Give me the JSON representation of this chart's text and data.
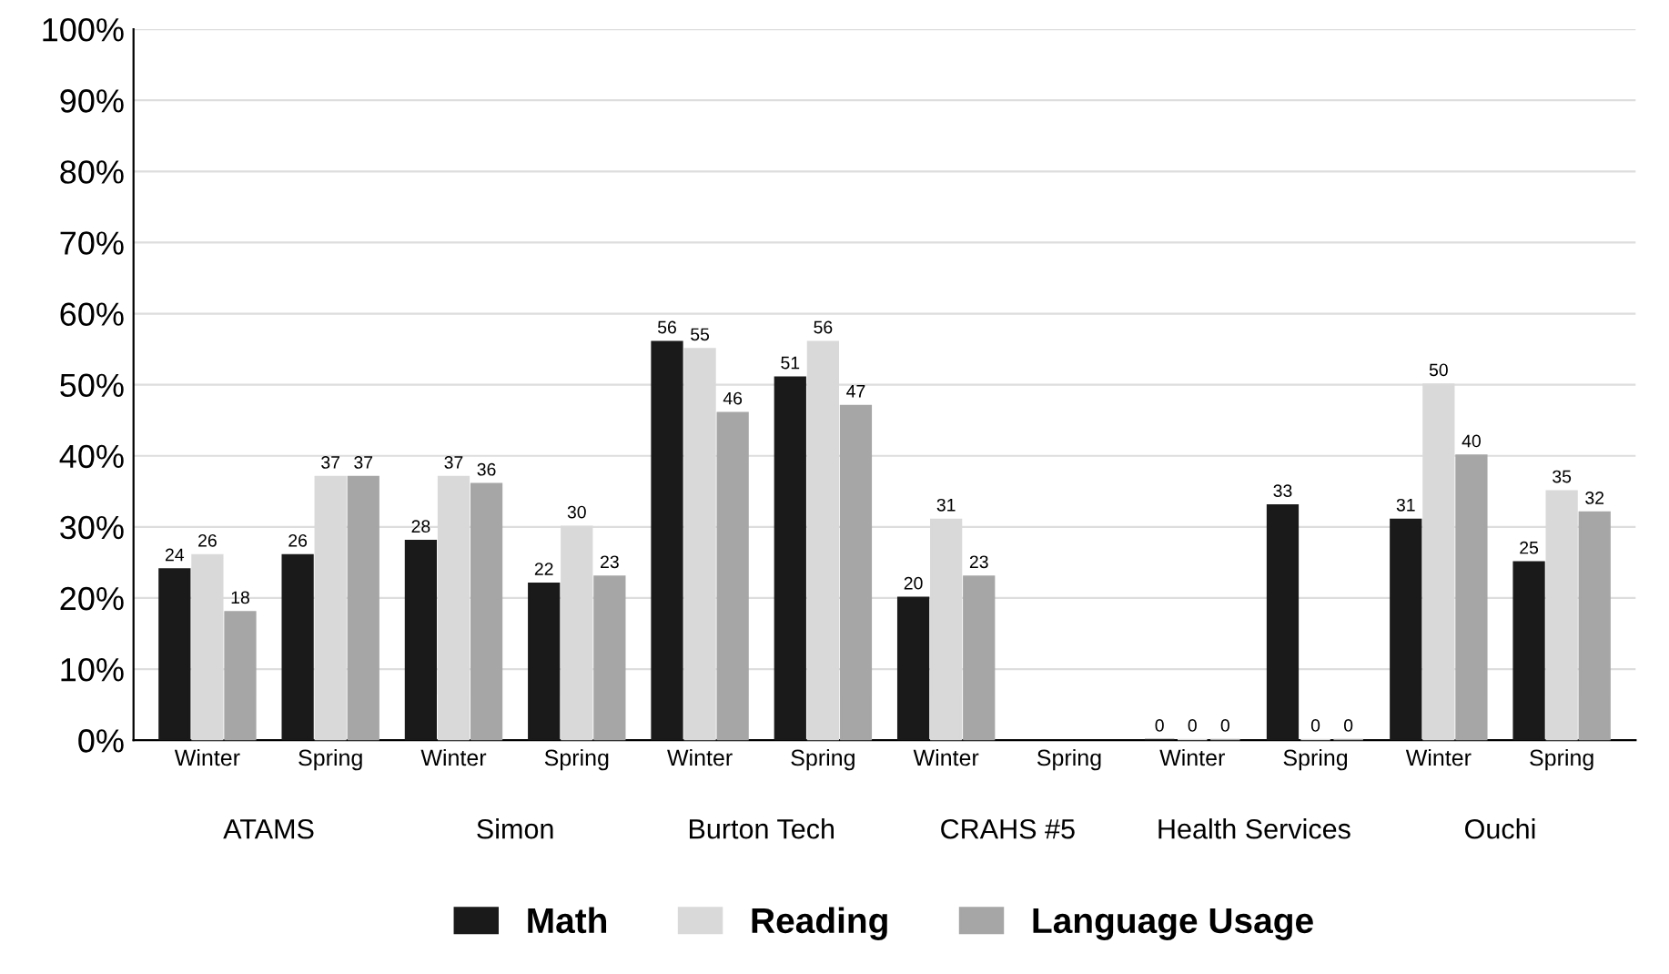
{
  "chart_data": {
    "type": "bar",
    "categories": [
      "Winter",
      "Spring",
      "Winter",
      "Spring",
      "Winter",
      "Spring",
      "Winter",
      "Spring",
      "Winter",
      "Spring",
      "Winter",
      "Spring"
    ],
    "series": [
      {
        "name": "Math",
        "color": "#1a1a1a",
        "values": [
          24,
          26,
          28,
          22,
          56,
          51,
          20,
          null,
          0,
          33,
          31,
          25
        ]
      },
      {
        "name": "Reading",
        "color": "#d9d9d9",
        "values": [
          26,
          37,
          37,
          30,
          55,
          56,
          31,
          null,
          0,
          0,
          50,
          35
        ]
      },
      {
        "name": "Language Usage",
        "color": "#a6a6a6",
        "values": [
          18,
          37,
          36,
          23,
          46,
          47,
          23,
          null,
          0,
          0,
          40,
          32
        ]
      }
    ],
    "annotations": [
      "ATAMS",
      "Simon",
      "Burton Tech",
      "CRAHS #5",
      "Health Services",
      "Ouchi"
    ],
    "ylim": [
      0,
      100
    ],
    "yticks": [
      {
        "value": 0,
        "label": "0%"
      },
      {
        "value": 10,
        "label": "10%"
      },
      {
        "value": 20,
        "label": "20%"
      },
      {
        "value": 30,
        "label": "30%"
      },
      {
        "value": 40,
        "label": "40%"
      },
      {
        "value": 50,
        "label": "50%"
      },
      {
        "value": 60,
        "label": "60%"
      },
      {
        "value": 70,
        "label": "70%"
      },
      {
        "value": 80,
        "label": "80%"
      },
      {
        "value": 90,
        "label": "90%"
      },
      {
        "value": 100,
        "label": "100%"
      }
    ],
    "grid": "y",
    "legend": "bottom",
    "data_labels": true
  }
}
